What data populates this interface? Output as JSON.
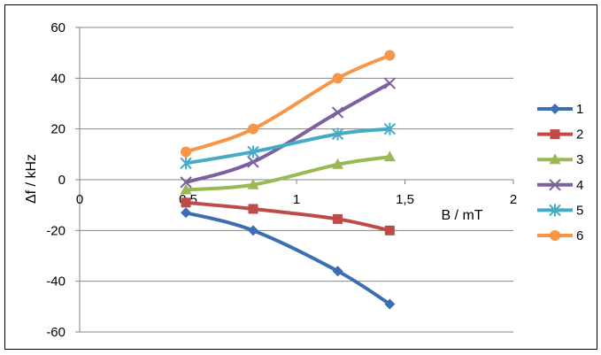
{
  "chart_data": {
    "type": "line",
    "xlabel": "B / mT",
    "ylabel": "Δf / kHz",
    "xlim": [
      0,
      2
    ],
    "ylim": [
      -60,
      60
    ],
    "x_ticks": [
      0,
      0.5,
      1,
      1.5,
      2
    ],
    "x_tick_labels": [
      "0",
      "0,5",
      "1",
      "1,5",
      "2"
    ],
    "y_ticks": [
      -60,
      -40,
      -20,
      0,
      20,
      40,
      60
    ],
    "y_tick_labels": [
      "-60",
      "-40",
      "-20",
      "0",
      "20",
      "40",
      "60"
    ],
    "grid": "horizontal",
    "legend_position": "right",
    "series": [
      {
        "name": "1",
        "color": "#3c6eb4",
        "marker": "diamond",
        "x": [
          0.49,
          0.8,
          1.19,
          1.43
        ],
        "y": [
          -13,
          -20,
          -36,
          -49
        ]
      },
      {
        "name": "2",
        "color": "#be4b48",
        "marker": "square",
        "x": [
          0.49,
          0.8,
          1.19,
          1.43
        ],
        "y": [
          -9,
          -11.5,
          -15.5,
          -20
        ]
      },
      {
        "name": "3",
        "color": "#98b954",
        "marker": "triangle",
        "x": [
          0.49,
          0.8,
          1.19,
          1.43
        ],
        "y": [
          -4,
          -2,
          6,
          9
        ]
      },
      {
        "name": "4",
        "color": "#7d60a0",
        "marker": "x",
        "x": [
          0.49,
          0.8,
          1.19,
          1.43
        ],
        "y": [
          -1,
          7,
          26.5,
          38
        ]
      },
      {
        "name": "5",
        "color": "#46aac5",
        "marker": "star",
        "x": [
          0.49,
          0.8,
          1.19,
          1.43
        ],
        "y": [
          6.5,
          11,
          18,
          20
        ]
      },
      {
        "name": "6",
        "color": "#f79646",
        "marker": "circle",
        "x": [
          0.49,
          0.8,
          1.19,
          1.43
        ],
        "y": [
          11,
          20,
          40,
          49
        ]
      }
    ]
  }
}
